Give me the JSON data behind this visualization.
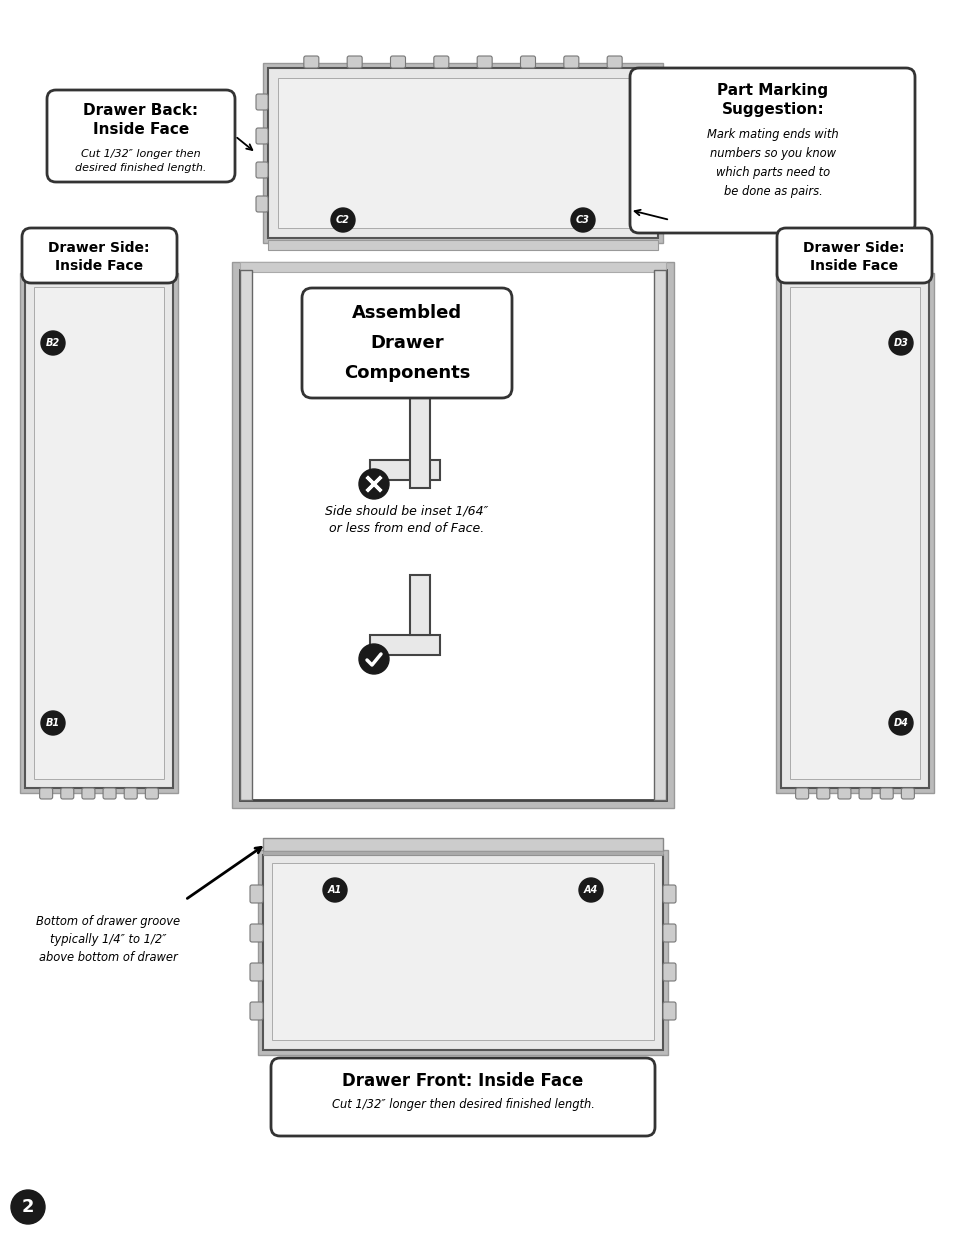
{
  "bg_color": "#ffffff",
  "title_line1": "Assembled",
  "title_line2": "Drawer",
  "title_line3": "Components",
  "drawer_back_title": "Drawer Back:\nInside Face",
  "drawer_back_sub": "Cut 1/32″ longer then\ndesired finished length.",
  "drawer_side_title": "Drawer Side:\nInside Face",
  "drawer_front_title": "Drawer Front: Inside Face",
  "drawer_front_sub": "Cut 1/32″ longer then desired finished length.",
  "part_marking_title": "Part Marking\nSuggestion:",
  "part_marking_sub": "Mark mating ends with\nnumbers so you know\nwhich parts need to\nbe done as pairs.",
  "side_inset_text": "Side should be inset 1/64″\nor less from end of Face.",
  "bottom_groove_text": "Bottom of drawer groove\ntypically 1/4″ to 1/2″\nabove bottom of drawer",
  "page_number": "2",
  "panel_fill": "#e8e8e8",
  "panel_inner_fill": "#f0f0f0",
  "panel_border": "#555555",
  "outer_border": "#aaaaaa",
  "tab_fill": "#cccccc",
  "tab_border": "#777777",
  "strip_fill": "#cccccc",
  "black": "#1a1a1a",
  "white": "#ffffff",
  "box_edge": "#333333"
}
